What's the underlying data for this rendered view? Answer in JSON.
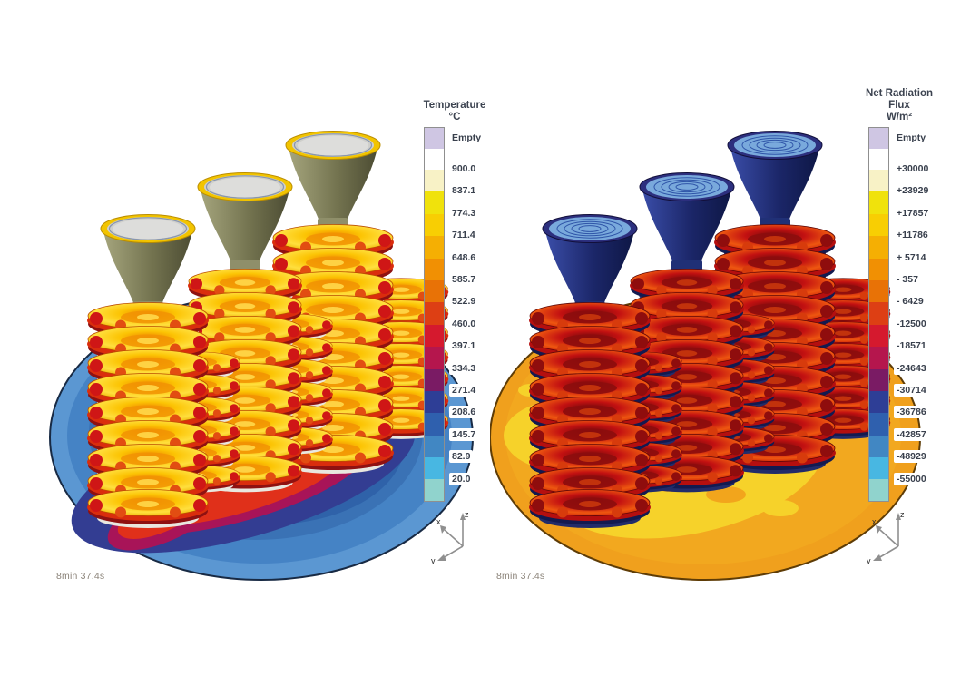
{
  "panels": [
    {
      "id": "temperature",
      "title_lines": [
        "Temperature",
        "°C"
      ],
      "timestamp": "8min 37.4s",
      "axes": {
        "x": "x",
        "y": "y",
        "z": "z"
      },
      "scene": {
        "baseplate_outer": "#5b97d2",
        "baseplate_inner": "#2f62a9",
        "hot_halo_red": "#e0301a",
        "hot_halo_magenta": "#a81458",
        "casting_hot": "#fcc404",
        "pour_cup_rim": "#f2c400",
        "pour_cup_body": "#73734f",
        "mold": "#dddddb"
      },
      "legend": {
        "segments": [
          {
            "color": "#cfc6e3",
            "label": "Empty"
          },
          {
            "color": "#ffffff",
            "label": "900.0"
          },
          {
            "color": "#f8f2c6",
            "label": "837.1"
          },
          {
            "color": "#f0e20c",
            "label": "774.3"
          },
          {
            "color": "#f8ce03",
            "label": "711.4"
          },
          {
            "color": "#f5af03",
            "label": "648.6"
          },
          {
            "color": "#f19003",
            "label": "585.7"
          },
          {
            "color": "#e87206",
            "label": "522.9"
          },
          {
            "color": "#dd3f14",
            "label": "460.0"
          },
          {
            "color": "#d5192e",
            "label": "397.1"
          },
          {
            "color": "#b5164d",
            "label": "334.3"
          },
          {
            "color": "#7a1b64",
            "label": "271.4"
          },
          {
            "color": "#2e3e96",
            "label": "208.6"
          },
          {
            "color": "#2f60ae",
            "label": "145.7"
          },
          {
            "color": "#4187c3",
            "label": "82.9"
          },
          {
            "color": "#48b7e2",
            "label": "20.0"
          },
          {
            "color": "#90d3cd",
            "label": ""
          }
        ]
      }
    },
    {
      "id": "net-radiation-flux",
      "title_lines": [
        "Net Radiation",
        "Flux",
        "W/m²"
      ],
      "timestamp": "8min 37.4s",
      "axes": {
        "x": "x",
        "y": "y",
        "z": "z"
      },
      "scene": {
        "baseplate_outer": "#f0a01d",
        "baseplate_patch": "#f6d22a",
        "casting_hot": "#c31111",
        "casting_shadow": "#131a50",
        "pour_cup_body": "#1b2668",
        "pour_cup_interior": "#79a9dc"
      },
      "legend": {
        "segments": [
          {
            "color": "#cfc6e3",
            "label": "Empty"
          },
          {
            "color": "#ffffff",
            "label": "+30000"
          },
          {
            "color": "#f8f2c6",
            "label": "+23929"
          },
          {
            "color": "#f0e20c",
            "label": "+17857"
          },
          {
            "color": "#f8ce03",
            "label": "+11786"
          },
          {
            "color": "#f5af03",
            "label": "+ 5714"
          },
          {
            "color": "#f19003",
            "label": "- 357"
          },
          {
            "color": "#e87206",
            "label": "- 6429"
          },
          {
            "color": "#dd3f14",
            "label": "-12500"
          },
          {
            "color": "#d5192e",
            "label": "-18571"
          },
          {
            "color": "#b5164d",
            "label": "-24643"
          },
          {
            "color": "#7a1b64",
            "label": "-30714"
          },
          {
            "color": "#2e3e96",
            "label": "-36786"
          },
          {
            "color": "#2f60ae",
            "label": "-42857"
          },
          {
            "color": "#4187c3",
            "label": "-48929"
          },
          {
            "color": "#48b7e2",
            "label": "-55000"
          },
          {
            "color": "#90d3cd",
            "label": ""
          }
        ]
      }
    }
  ]
}
